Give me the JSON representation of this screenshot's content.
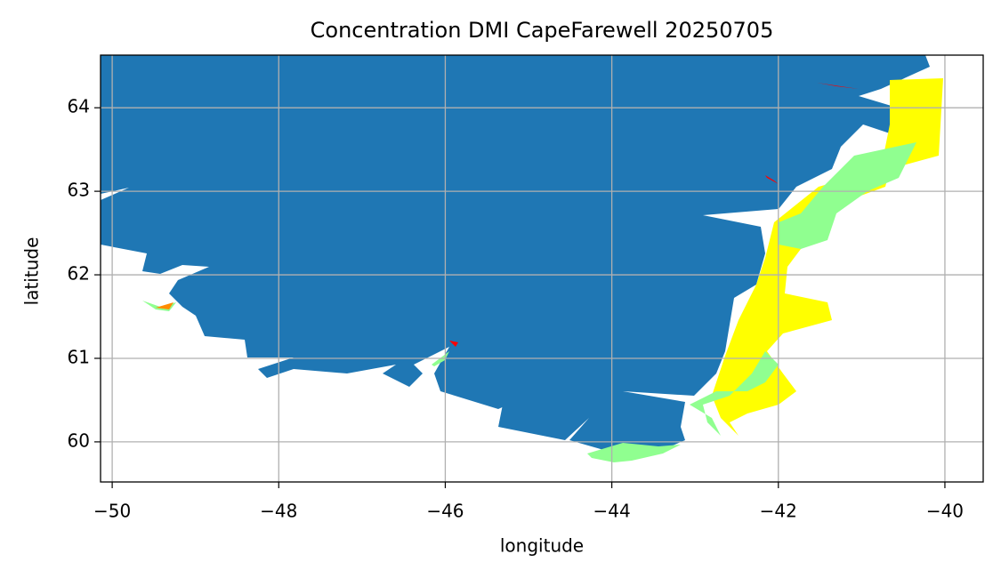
{
  "chart_data": {
    "type": "map",
    "title": "Concentration DMI CapeFarewell 20250705",
    "x_label": "longitude",
    "y_label": "latitude",
    "xlim": [
      -50.14,
      -39.54
    ],
    "ylim": [
      59.52,
      64.63
    ],
    "xticks": [
      {
        "value": -50,
        "label": "−50"
      },
      {
        "value": -48,
        "label": "−48"
      },
      {
        "value": -46,
        "label": "−46"
      },
      {
        "value": -44,
        "label": "−44"
      },
      {
        "value": -42,
        "label": "−42"
      },
      {
        "value": -40,
        "label": "−40"
      }
    ],
    "yticks": [
      60,
      61,
      62,
      63,
      64
    ],
    "grid": true
  }
}
